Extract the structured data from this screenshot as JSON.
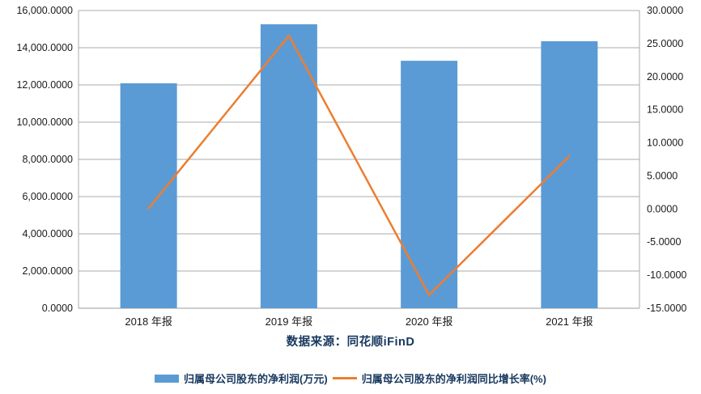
{
  "source_text": "数据来源：同花顺iFinD",
  "legend": {
    "bar_label": "归属母公司股东的净利润(万元)",
    "line_label": "归属母公司股东的净利润同比增长率(%)"
  },
  "colors": {
    "bar": "#5B9BD5",
    "line": "#ED7D31",
    "grid": "#ABABAB",
    "axis": "#9B9B9B",
    "tick_text": "#1a1a1a",
    "navy_text": "#17375E",
    "background": "#ffffff"
  },
  "chart_data": {
    "type": "bar",
    "subtype": "bar+line combo, dual axis",
    "categories": [
      "2018 年报",
      "2019 年报",
      "2020 年报",
      "2021 年报"
    ],
    "series": [
      {
        "name": "归属母公司股东的净利润(万元)",
        "type": "bar",
        "axis": "left",
        "color": "#5B9BD5",
        "values": [
          12090,
          15260,
          13300,
          14350
        ]
      },
      {
        "name": "归属母公司股东的净利润同比增长率(%)",
        "type": "line",
        "axis": "right",
        "color": "#ED7D31",
        "values": [
          0.1,
          26.2,
          -13.0,
          8.0
        ]
      }
    ],
    "left_axis": {
      "min": 0,
      "max": 16000,
      "step": 2000,
      "tick_labels": [
        "0.0000",
        "2,000.0000",
        "4,000.0000",
        "6,000.0000",
        "8,000.0000",
        "10,000.0000",
        "12,000.0000",
        "14,000.0000",
        "16,000.0000"
      ]
    },
    "right_axis": {
      "min": -15,
      "max": 30,
      "step": 5,
      "tick_labels": [
        "-15.0000",
        "-10.0000",
        "-5.0000",
        "0.0000",
        "5.0000",
        "10.0000",
        "15.0000",
        "20.0000",
        "25.0000",
        "30.0000"
      ]
    },
    "grid": "horizontal",
    "legend_position": "bottom",
    "title": ""
  }
}
